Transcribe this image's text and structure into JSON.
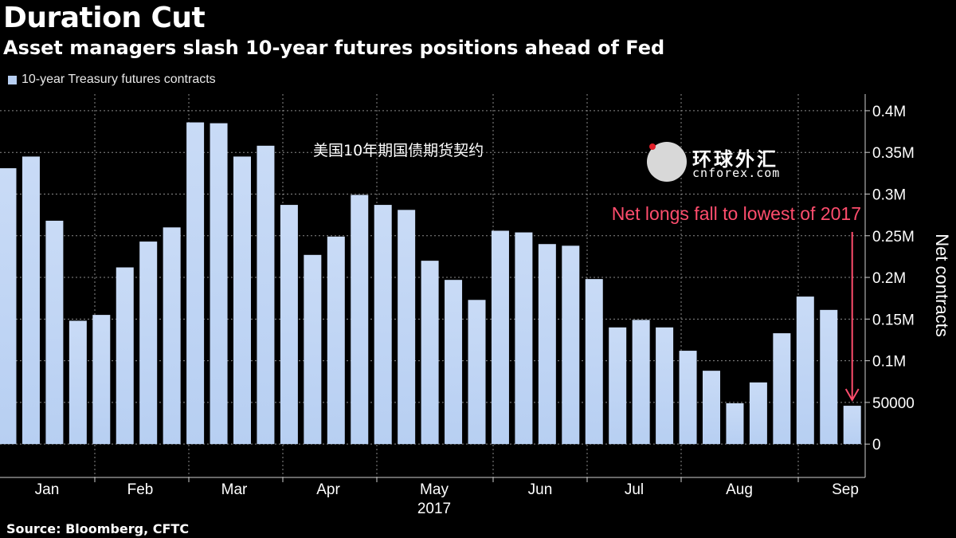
{
  "header": {
    "title": "Duration Cut",
    "subtitle": "Asset managers slash 10-year futures positions ahead of Fed"
  },
  "legend": {
    "label": "10-year Treasury futures contracts",
    "color": "#b7cff2"
  },
  "source": "Source: Bloomberg, CFTC",
  "watermark": {
    "cn": "环球外汇",
    "en": "cnforex.com"
  },
  "colors": {
    "bar": "#b7cff2",
    "annotation": "#ff4d6d",
    "grid": "#8a8a8a",
    "background": "#000000"
  },
  "chart_data": {
    "type": "bar",
    "title": "Duration Cut",
    "subtitle": "Asset managers slash 10-year futures positions ahead of Fed",
    "series": [
      {
        "name": "10-year Treasury futures contracts",
        "values": [
          331000,
          345000,
          268000,
          148000,
          155000,
          212000,
          243000,
          260000,
          386000,
          385000,
          345000,
          358000,
          287000,
          227000,
          249000,
          299000,
          287000,
          281000,
          220000,
          197000,
          173000,
          256000,
          254000,
          240000,
          238000,
          198000,
          140000,
          149000,
          140000,
          112000,
          88000,
          49000,
          74000,
          133000,
          177000,
          161000,
          46000
        ]
      }
    ],
    "month_labels": [
      "Jan",
      "Feb",
      "Mar",
      "Apr",
      "May",
      "Jun",
      "Jul",
      "Aug",
      "Sep"
    ],
    "xlabel": "2017",
    "ylabel": "Net contracts",
    "ylim": [
      -40000,
      420000
    ],
    "yticks": [
      0,
      50000,
      100000,
      150000,
      200000,
      250000,
      300000,
      350000,
      400000
    ],
    "ytick_labels": [
      "0",
      "50000",
      "0.1M",
      "0.15M",
      "0.2M",
      "0.25M",
      "0.3M",
      "0.35M",
      "0.4M"
    ],
    "annotations": [
      {
        "text": "Net longs fall to lowest of 2017",
        "points_to_index": 36
      },
      {
        "text": "美国10年期国债期货契约"
      }
    ],
    "grid": true,
    "axis_side": "right"
  }
}
